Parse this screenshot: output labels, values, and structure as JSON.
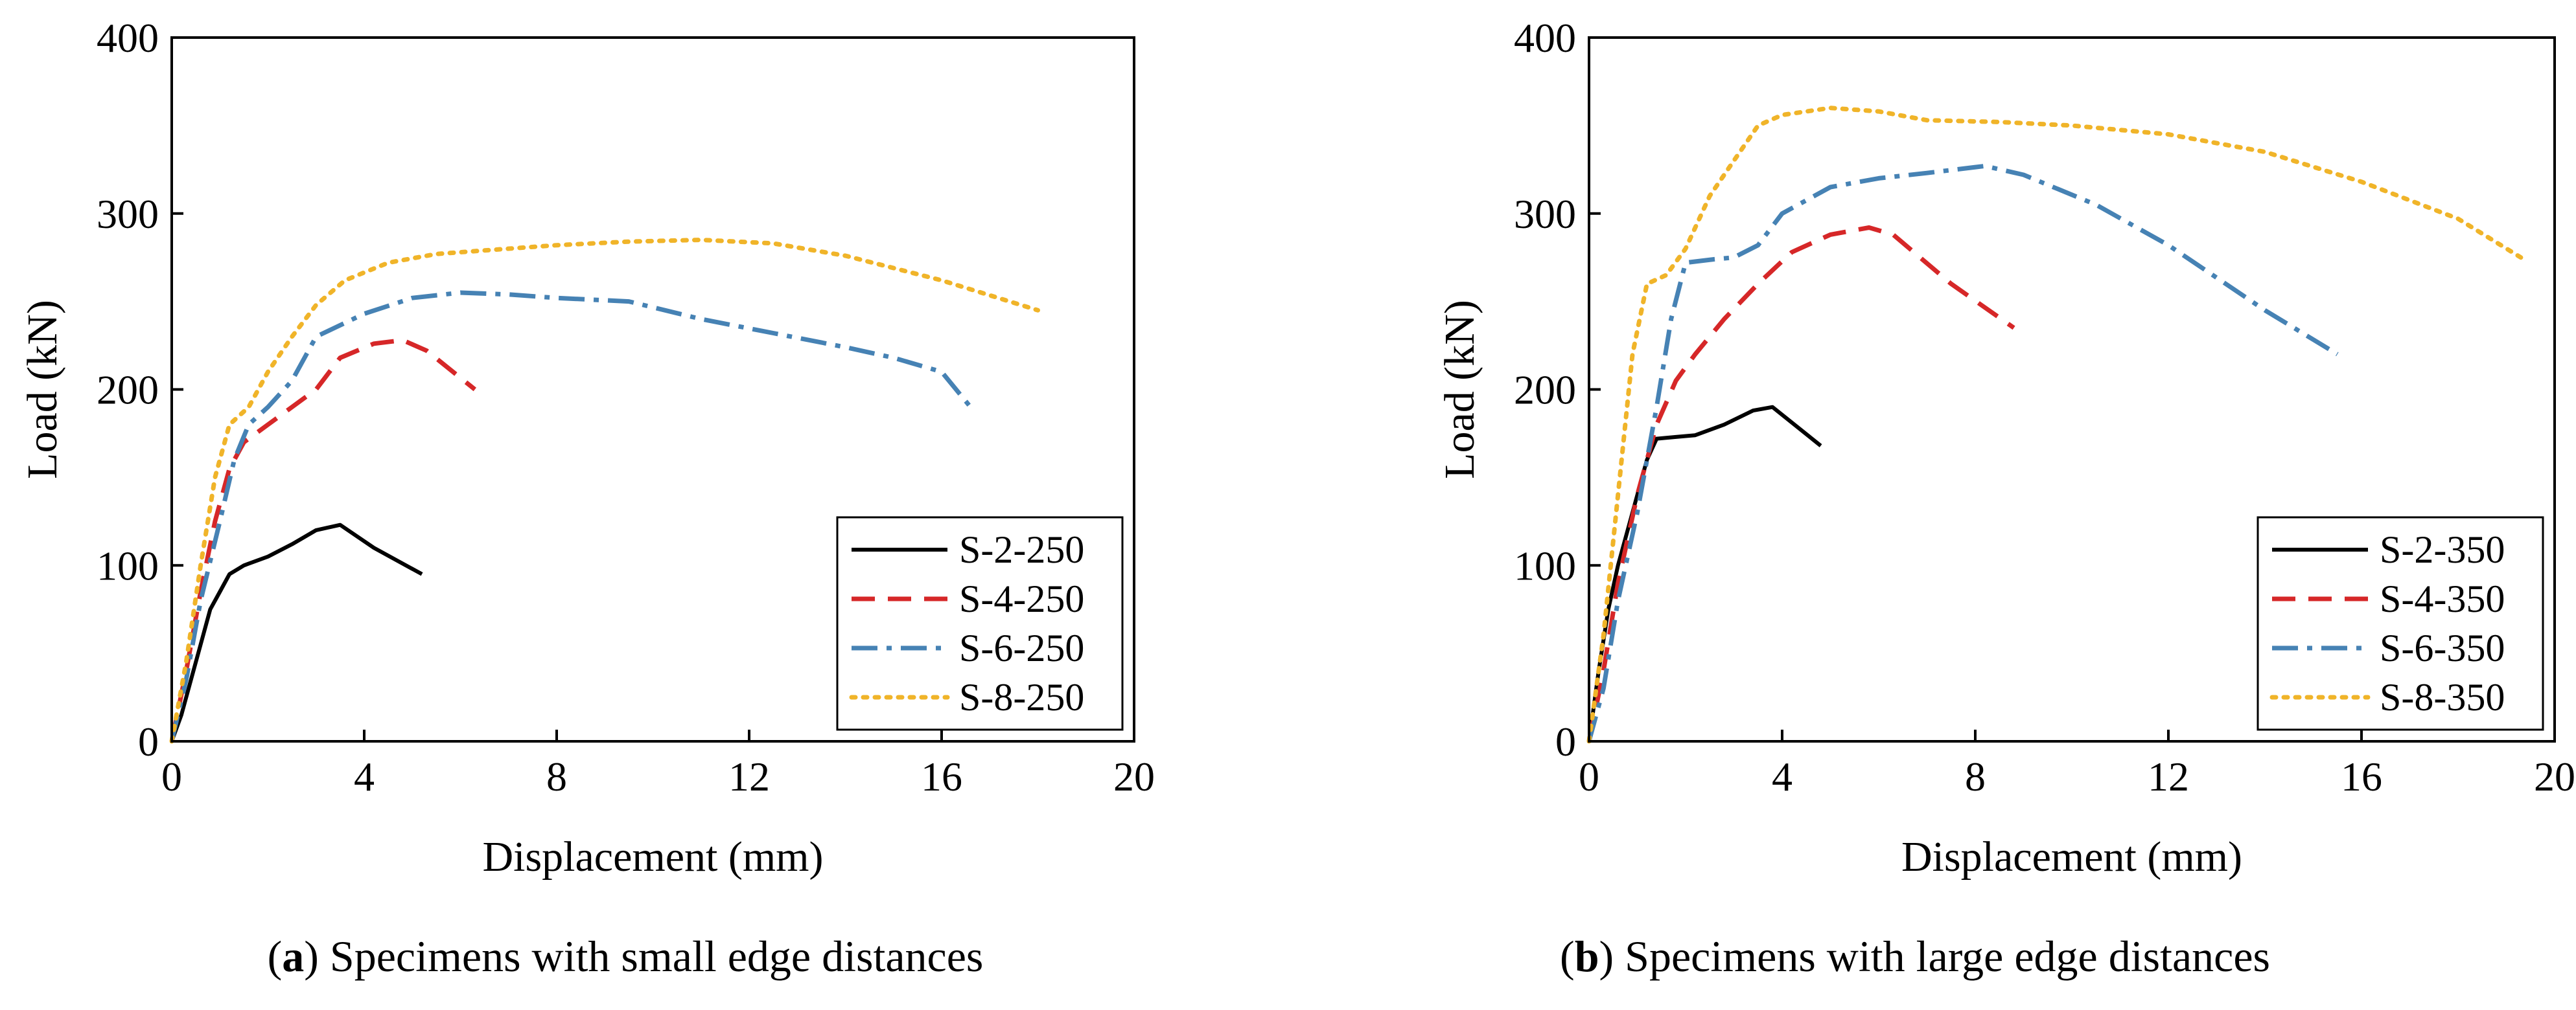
{
  "figure": {
    "charts": [
      {
        "caption_letter": "a",
        "caption_text": "Specimens with small edge distances"
      },
      {
        "caption_letter": "b",
        "caption_text": "Specimens with large edge distances"
      }
    ]
  },
  "chart_data": [
    {
      "type": "line",
      "title": "",
      "xlabel": "Displacement (mm)",
      "ylabel": "Load (kN)",
      "xlim": [
        0,
        20
      ],
      "ylim": [
        0,
        400
      ],
      "xticks": [
        0,
        4,
        8,
        12,
        16,
        20
      ],
      "yticks": [
        0,
        100,
        200,
        300,
        400
      ],
      "legend_position": "bottom-right",
      "series": [
        {
          "name": "S-2-250",
          "color": "#000000",
          "dash": "solid",
          "x": [
            0,
            0.2,
            0.4,
            0.6,
            0.8,
            1.0,
            1.2,
            1.5,
            2.0,
            2.5,
            3.0,
            3.5,
            4.2,
            5.2
          ],
          "y": [
            0,
            15,
            35,
            55,
            75,
            85,
            95,
            100,
            105,
            112,
            120,
            123,
            110,
            95
          ]
        },
        {
          "name": "S-4-250",
          "color": "#d62728",
          "dash": "dash",
          "x": [
            0,
            0.3,
            0.6,
            0.9,
            1.2,
            1.5,
            2.0,
            2.5,
            3.0,
            3.5,
            4.2,
            4.8,
            5.3,
            6.3
          ],
          "y": [
            0,
            40,
            85,
            125,
            155,
            170,
            180,
            190,
            200,
            218,
            226,
            228,
            222,
            200
          ]
        },
        {
          "name": "S-6-250",
          "color": "#4682b4",
          "dash": "dashdot",
          "x": [
            0,
            0.3,
            0.6,
            1.0,
            1.3,
            1.6,
            2.0,
            2.5,
            3.0,
            4.0,
            5.0,
            6.0,
            7.0,
            8.0,
            9.5,
            11.0,
            12.5,
            14.0,
            15.0,
            16.0,
            16.6
          ],
          "y": [
            0,
            35,
            80,
            125,
            160,
            180,
            190,
            205,
            230,
            243,
            252,
            255,
            254,
            252,
            250,
            240,
            232,
            224,
            218,
            210,
            190
          ]
        },
        {
          "name": "S-8-250",
          "color": "#f0b429",
          "dash": "dot",
          "x": [
            0,
            0.3,
            0.6,
            0.9,
            1.2,
            1.6,
            2.0,
            2.5,
            3.0,
            3.6,
            4.5,
            5.5,
            6.5,
            8.0,
            9.5,
            11.0,
            12.5,
            14.0,
            16.0,
            18.0
          ],
          "y": [
            0,
            45,
            100,
            150,
            180,
            190,
            210,
            230,
            248,
            262,
            272,
            277,
            279,
            282,
            284,
            285,
            283,
            276,
            262,
            245
          ]
        }
      ]
    },
    {
      "type": "line",
      "title": "",
      "xlabel": "Displacement (mm)",
      "ylabel": "Load (kN)",
      "xlim": [
        0,
        20
      ],
      "ylim": [
        0,
        400
      ],
      "xticks": [
        0,
        4,
        8,
        12,
        16,
        20
      ],
      "yticks": [
        0,
        100,
        200,
        300,
        400
      ],
      "legend_position": "bottom-right",
      "series": [
        {
          "name": "S-2-350",
          "color": "#000000",
          "dash": "solid",
          "x": [
            0,
            0.2,
            0.4,
            0.6,
            0.8,
            1.0,
            1.2,
            1.4,
            1.8,
            2.2,
            2.8,
            3.4,
            3.8,
            4.8
          ],
          "y": [
            0,
            40,
            75,
            100,
            120,
            140,
            160,
            172,
            173,
            174,
            180,
            188,
            190,
            168
          ]
        },
        {
          "name": "S-4-350",
          "color": "#d62728",
          "dash": "dash",
          "x": [
            0,
            0.3,
            0.6,
            1.0,
            1.4,
            1.8,
            2.2,
            2.8,
            3.5,
            4.2,
            5.0,
            5.8,
            6.3,
            7.5,
            8.8
          ],
          "y": [
            0,
            40,
            90,
            140,
            180,
            205,
            220,
            240,
            260,
            278,
            288,
            292,
            288,
            260,
            235
          ]
        },
        {
          "name": "S-6-350",
          "color": "#4682b4",
          "dash": "dashdot",
          "x": [
            0,
            0.3,
            0.6,
            1.0,
            1.4,
            1.7,
            2.0,
            2.6,
            3.0,
            3.5,
            4.0,
            5.0,
            6.0,
            7.0,
            8.2,
            9.0,
            10.5,
            12.0,
            14.0,
            15.5
          ],
          "y": [
            0,
            30,
            80,
            130,
            190,
            240,
            272,
            274,
            275,
            282,
            300,
            315,
            320,
            323,
            327,
            322,
            305,
            282,
            245,
            220
          ]
        },
        {
          "name": "S-8-350",
          "color": "#f0b429",
          "dash": "dot",
          "x": [
            0,
            0.3,
            0.6,
            0.9,
            1.2,
            1.6,
            2.0,
            2.5,
            3.0,
            3.5,
            4.0,
            5.0,
            6.0,
            7.0,
            8.5,
            10.0,
            12.0,
            14.0,
            16.0,
            18.0,
            19.3
          ],
          "y": [
            0,
            60,
            140,
            220,
            260,
            265,
            280,
            310,
            330,
            350,
            356,
            360,
            358,
            353,
            352,
            350,
            345,
            335,
            318,
            297,
            275
          ]
        }
      ]
    }
  ]
}
